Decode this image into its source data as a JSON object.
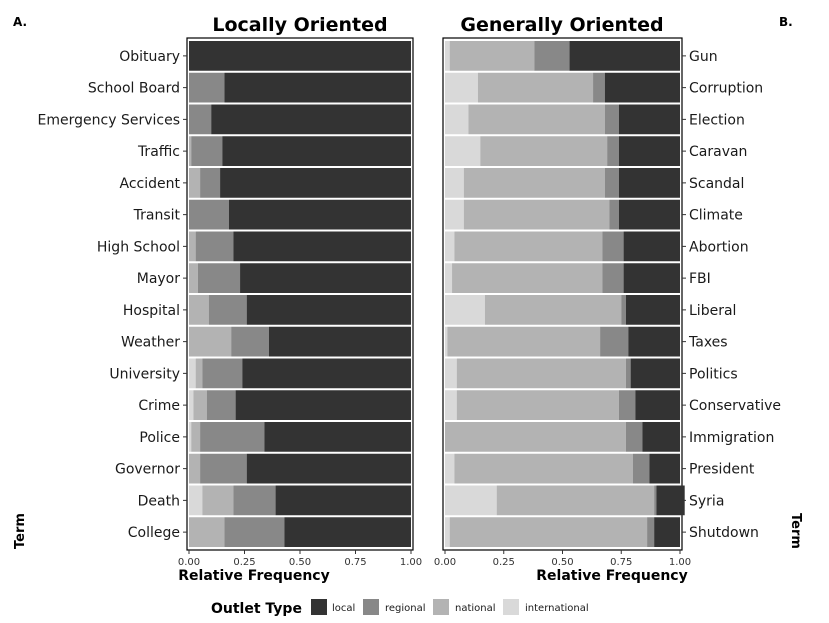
{
  "chart_data": [
    {
      "type": "bar",
      "stacked": true,
      "orientation": "horizontal",
      "panel_letter": "A.",
      "title": "Locally Oriented",
      "xlabel": "Relative Frequency",
      "ylabel": "Term",
      "xlim": [
        0,
        1
      ],
      "xticks": [
        "0.00",
        "0.25",
        "0.50",
        "0.75",
        "1.00"
      ],
      "categories": [
        "Obituary",
        "School Board",
        "Emergency Services",
        "Traffic",
        "Accident",
        "Transit",
        "High School",
        "Mayor",
        "Hospital",
        "Weather",
        "University",
        "Crime",
        "Police",
        "Governor",
        "Death",
        "College"
      ],
      "series": [
        {
          "name": "international",
          "values": [
            0.0,
            0.0,
            0.0,
            0.0,
            0.0,
            0.0,
            0.0,
            0.0,
            0.0,
            0.0,
            0.03,
            0.02,
            0.01,
            0.0,
            0.06,
            0.0
          ]
        },
        {
          "name": "national",
          "values": [
            0.0,
            0.0,
            0.0,
            0.01,
            0.05,
            0.0,
            0.03,
            0.04,
            0.09,
            0.19,
            0.03,
            0.06,
            0.04,
            0.05,
            0.14,
            0.16
          ]
        },
        {
          "name": "regional",
          "values": [
            0.0,
            0.16,
            0.1,
            0.14,
            0.09,
            0.18,
            0.17,
            0.19,
            0.17,
            0.17,
            0.18,
            0.13,
            0.29,
            0.21,
            0.19,
            0.27
          ]
        },
        {
          "name": "local",
          "values": [
            1.0,
            0.84,
            0.9,
            0.85,
            0.86,
            0.82,
            0.8,
            0.77,
            0.74,
            0.64,
            0.76,
            0.79,
            0.66,
            0.74,
            0.61,
            0.57
          ]
        }
      ]
    },
    {
      "type": "bar",
      "stacked": true,
      "orientation": "horizontal",
      "panel_letter": "B.",
      "title": "Generally Oriented",
      "xlabel": "Relative Frequency",
      "ylabel": "Term",
      "xlim": [
        0,
        1
      ],
      "xticks": [
        "0.00",
        "0.25",
        "0.50",
        "0.75",
        "1.00"
      ],
      "categories": [
        "Gun",
        "Corruption",
        "Election",
        "Caravan",
        "Scandal",
        "Climate",
        "Abortion",
        "FBI",
        "Liberal",
        "Taxes",
        "Politics",
        "Conservative",
        "Immigration",
        "President",
        "Syria",
        "Shutdown"
      ],
      "series": [
        {
          "name": "international",
          "values": [
            0.02,
            0.14,
            0.1,
            0.15,
            0.08,
            0.08,
            0.04,
            0.03,
            0.17,
            0.01,
            0.05,
            0.05,
            0.0,
            0.04,
            0.22,
            0.02
          ]
        },
        {
          "name": "national",
          "values": [
            0.36,
            0.49,
            0.58,
            0.54,
            0.6,
            0.62,
            0.63,
            0.64,
            0.58,
            0.65,
            0.72,
            0.69,
            0.77,
            0.76,
            0.67,
            0.84
          ]
        },
        {
          "name": "regional",
          "values": [
            0.15,
            0.05,
            0.06,
            0.05,
            0.06,
            0.04,
            0.09,
            0.09,
            0.02,
            0.12,
            0.02,
            0.07,
            0.07,
            0.07,
            0.01,
            0.03
          ]
        },
        {
          "name": "local",
          "values": [
            0.47,
            0.32,
            0.26,
            0.26,
            0.26,
            0.26,
            0.24,
            0.24,
            0.23,
            0.22,
            0.21,
            0.19,
            0.16,
            0.13,
            0.12,
            0.11
          ]
        }
      ]
    }
  ],
  "legend": {
    "title": "Outlet Type",
    "placement": "bottom",
    "items": [
      {
        "label": "local",
        "color": "#333333"
      },
      {
        "label": "regional",
        "color": "#888888"
      },
      {
        "label": "national",
        "color": "#b3b3b3"
      },
      {
        "label": "international",
        "color": "#d9d9d9"
      }
    ]
  }
}
